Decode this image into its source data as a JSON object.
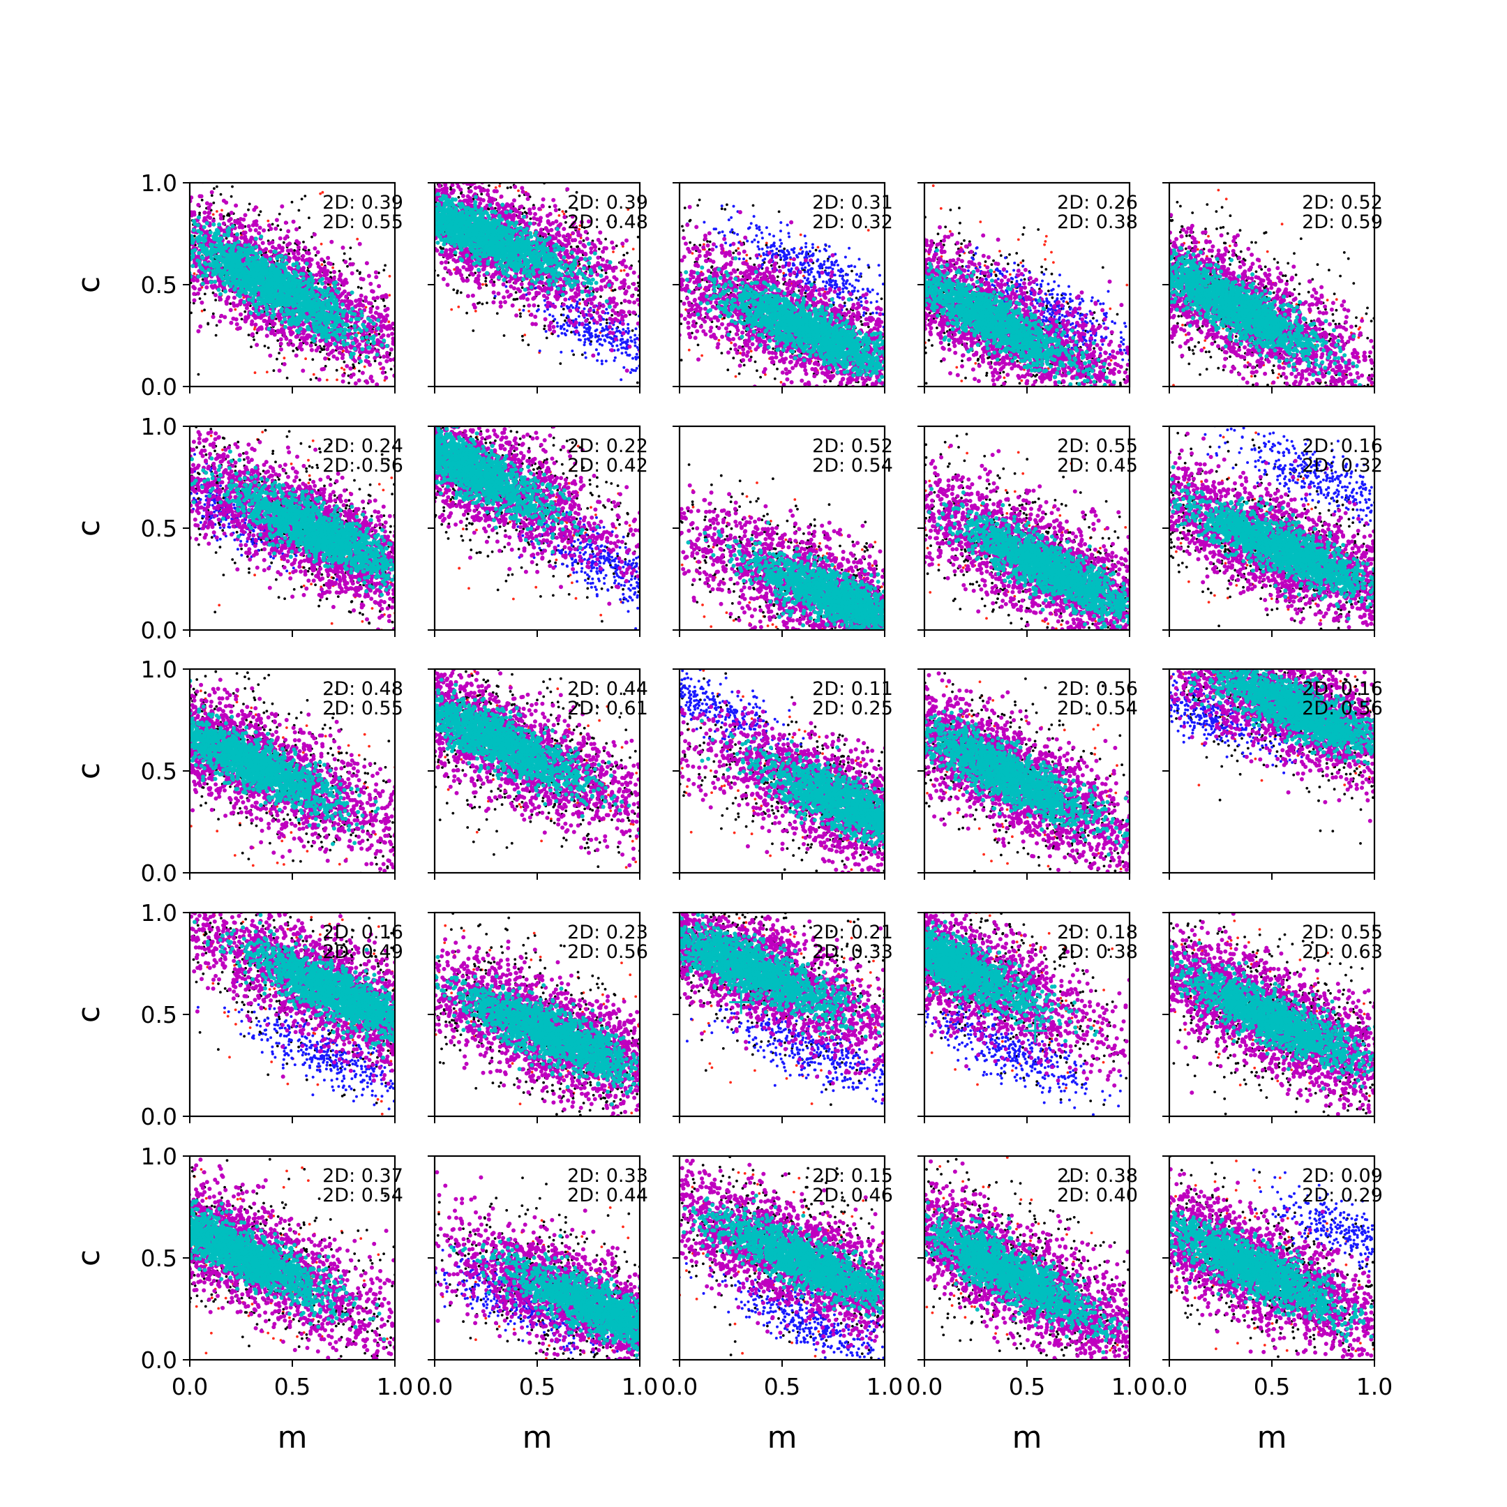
{
  "chart_data": {
    "type": "scatter",
    "layout": {
      "rows": 5,
      "cols": 5
    },
    "xlabel": "m",
    "ylabel": "c",
    "xlim": [
      0.0,
      1.0
    ],
    "ylim": [
      0.0,
      1.0
    ],
    "xticks": [
      "0.0",
      "0.5",
      "1.0"
    ],
    "yticks": [
      "0.0",
      "0.5",
      "1.0"
    ],
    "colors": {
      "outer_red": "#ff2a1a",
      "outer_black": "#000000",
      "alt_mode_blue": "#1a1aff",
      "mid_magenta": "#bf00bf",
      "core_cyan": "#00bfbf",
      "marker_cyan": "#00bfbf"
    },
    "panels": [
      {
        "annotations": [
          "2D: 0.39",
          "2D: 0.55"
        ],
        "center": [
          0.4,
          0.5
        ],
        "slope": -0.55,
        "alt": null,
        "marker": null
      },
      {
        "annotations": [
          "2D: 0.39",
          "2D: 0.48"
        ],
        "center": [
          0.22,
          0.75
        ],
        "slope": -0.45,
        "alt": [
          0.85,
          0.25
        ],
        "marker": [
          0.5,
          0.68
        ]
      },
      {
        "annotations": [
          "2D: 0.31",
          "2D: 0.32"
        ],
        "center": [
          0.62,
          0.28
        ],
        "slope": -0.45,
        "alt": [
          0.62,
          0.58
        ],
        "marker": null
      },
      {
        "annotations": [
          "2D: 0.26",
          "2D: 0.38"
        ],
        "center": [
          0.32,
          0.33
        ],
        "slope": -0.55,
        "alt": [
          0.62,
          0.38
        ],
        "marker": null
      },
      {
        "annotations": [
          "2D: 0.52",
          "2D: 0.59"
        ],
        "center": [
          0.3,
          0.4
        ],
        "slope": -0.55,
        "alt": null,
        "marker": null
      },
      {
        "annotations": [
          "2D: 0.24",
          "2D: 0.56"
        ],
        "center": [
          0.62,
          0.48
        ],
        "slope": -0.5,
        "alt": [
          0.2,
          0.58
        ],
        "marker": [
          0.47,
          0.57
        ]
      },
      {
        "annotations": [
          "2D: 0.22",
          "2D: 0.42"
        ],
        "center": [
          0.15,
          0.8
        ],
        "slope": -0.55,
        "alt": [
          0.82,
          0.33
        ],
        "marker": [
          0.4,
          0.58
        ]
      },
      {
        "annotations": [
          "2D: 0.52",
          "2D: 0.54"
        ],
        "center": [
          0.78,
          0.15
        ],
        "slope": -0.45,
        "alt": null,
        "marker": null
      },
      {
        "annotations": [
          "2D: 0.55",
          "2D: 0.45"
        ],
        "center": [
          0.62,
          0.3
        ],
        "slope": -0.55,
        "alt": null,
        "marker": null
      },
      {
        "annotations": [
          "2D: 0.16",
          "2D: 0.32"
        ],
        "center": [
          0.55,
          0.4
        ],
        "slope": -0.45,
        "alt": [
          0.75,
          0.75
        ],
        "marker": null
      },
      {
        "annotations": [
          "2D: 0.48",
          "2D: 0.55"
        ],
        "center": [
          0.28,
          0.55
        ],
        "slope": -0.5,
        "alt": null,
        "marker": null
      },
      {
        "annotations": [
          "2D: 0.44",
          "2D: 0.61"
        ],
        "center": [
          0.3,
          0.65
        ],
        "slope": -0.5,
        "alt": null,
        "marker": null
      },
      {
        "annotations": [
          "2D: 0.11",
          "2D: 0.25"
        ],
        "center": [
          0.85,
          0.32
        ],
        "slope": -0.45,
        "alt": [
          0.08,
          0.85
        ],
        "marker": [
          0.63,
          0.4
        ]
      },
      {
        "annotations": [
          "2D: 0.56",
          "2D: 0.54"
        ],
        "center": [
          0.4,
          0.48
        ],
        "slope": -0.55,
        "alt": null,
        "marker": null
      },
      {
        "annotations": [
          "2D: 0.16",
          "2D: 0.56"
        ],
        "center": [
          0.62,
          0.8
        ],
        "slope": -0.45,
        "alt": [
          0.18,
          0.78
        ],
        "marker": null
      },
      {
        "annotations": [
          "2D: 0.16",
          "2D: 0.49"
        ],
        "center": [
          0.72,
          0.6
        ],
        "slope": -0.5,
        "alt": [
          0.68,
          0.3
        ],
        "marker": [
          0.55,
          0.72
        ]
      },
      {
        "annotations": [
          "2D: 0.23",
          "2D: 0.56"
        ],
        "center": [
          0.58,
          0.4
        ],
        "slope": -0.45,
        "alt": null,
        "marker": null
      },
      {
        "annotations": [
          "2D: 0.21",
          "2D: 0.33"
        ],
        "center": [
          0.35,
          0.72
        ],
        "slope": -0.45,
        "alt": [
          0.65,
          0.32
        ],
        "marker": [
          0.3,
          0.56
        ]
      },
      {
        "annotations": [
          "2D: 0.18",
          "2D: 0.38"
        ],
        "center": [
          0.12,
          0.75
        ],
        "slope": -0.5,
        "alt": [
          0.42,
          0.32
        ],
        "marker": [
          0.54,
          0.42
        ]
      },
      {
        "annotations": [
          "2D: 0.55",
          "2D: 0.63"
        ],
        "center": [
          0.5,
          0.48
        ],
        "slope": -0.5,
        "alt": null,
        "marker": null
      },
      {
        "annotations": [
          "2D: 0.37",
          "2D: 0.54"
        ],
        "center": [
          0.25,
          0.52
        ],
        "slope": -0.5,
        "alt": null,
        "marker": null
      },
      {
        "annotations": [
          "2D: 0.33",
          "2D: 0.44"
        ],
        "center": [
          0.8,
          0.25
        ],
        "slope": -0.45,
        "alt": [
          0.42,
          0.28
        ],
        "marker": [
          0.4,
          0.47
        ]
      },
      {
        "annotations": [
          "2D: 0.15",
          "2D: 0.46"
        ],
        "center": [
          0.62,
          0.48
        ],
        "slope": -0.45,
        "alt": [
          0.65,
          0.18
        ],
        "marker": null
      },
      {
        "annotations": [
          "2D: 0.38",
          "2D: 0.40"
        ],
        "center": [
          0.42,
          0.42
        ],
        "slope": -0.55,
        "alt": null,
        "marker": null
      },
      {
        "annotations": [
          "2D: 0.09",
          "2D: 0.29"
        ],
        "center": [
          0.4,
          0.45
        ],
        "slope": -0.5,
        "alt": [
          0.92,
          0.6
        ],
        "marker": null
      }
    ]
  }
}
